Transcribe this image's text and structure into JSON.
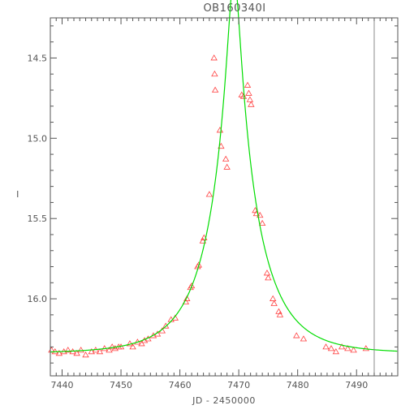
{
  "chart_data": {
    "type": "scatter",
    "title": "OB160340I",
    "xlabel": "JD - 2450000",
    "ylabel": "I",
    "xlim": [
      7438,
      7497
    ],
    "ylim": [
      16.48,
      14.25
    ],
    "y_reversed": true,
    "x_ticks": [
      7440,
      7450,
      7460,
      7470,
      7480,
      7490
    ],
    "y_ticks": [
      14.5,
      15.0,
      15.5,
      16.0
    ],
    "x_tick_labels": [
      "7440",
      "7450",
      "7460",
      "7470",
      "7480",
      "7490"
    ],
    "y_tick_labels": [
      "14.5",
      "15.0",
      "15.5",
      "16.0"
    ],
    "vertical_line_x": 7493,
    "colors": {
      "points": "#ff4040",
      "model": "#00dd00",
      "axes": "#555555",
      "vline": "#888888"
    },
    "series": [
      {
        "kind": "data_points",
        "marker": "triangle",
        "points": [
          [
            7438.2,
            16.32
          ],
          [
            7438.8,
            16.33
          ],
          [
            7439.5,
            16.34
          ],
          [
            7440.3,
            16.33
          ],
          [
            7441.0,
            16.32
          ],
          [
            7441.8,
            16.33
          ],
          [
            7442.5,
            16.34
          ],
          [
            7443.2,
            16.32
          ],
          [
            7444.0,
            16.35
          ],
          [
            7445.0,
            16.33
          ],
          [
            7445.7,
            16.32
          ],
          [
            7446.4,
            16.33
          ],
          [
            7447.2,
            16.31
          ],
          [
            7448.0,
            16.32
          ],
          [
            7448.5,
            16.3
          ],
          [
            7449.0,
            16.31
          ],
          [
            7449.6,
            16.3
          ],
          [
            7450.0,
            16.3
          ],
          [
            7451.5,
            16.28
          ],
          [
            7452.0,
            16.3
          ],
          [
            7452.8,
            16.27
          ],
          [
            7453.5,
            16.28
          ],
          [
            7454.0,
            16.26
          ],
          [
            7454.6,
            16.25
          ],
          [
            7455.5,
            16.23
          ],
          [
            7456.2,
            16.22
          ],
          [
            7457.0,
            16.2
          ],
          [
            7457.6,
            16.17
          ],
          [
            7458.5,
            16.13
          ],
          [
            7459.2,
            16.12
          ],
          [
            7461.0,
            16.02
          ],
          [
            7461.2,
            16.0
          ],
          [
            7461.8,
            15.93
          ],
          [
            7462.0,
            15.92
          ],
          [
            7463.0,
            15.8
          ],
          [
            7463.2,
            15.79
          ],
          [
            7463.9,
            15.64
          ],
          [
            7464.1,
            15.62
          ],
          [
            7465.0,
            15.35
          ],
          [
            7465.8,
            14.5
          ],
          [
            7465.9,
            14.6
          ],
          [
            7466.0,
            14.7
          ],
          [
            7466.8,
            14.95
          ],
          [
            7467.0,
            15.05
          ],
          [
            7467.8,
            15.13
          ],
          [
            7468.0,
            15.18
          ],
          [
            7470.5,
            14.73
          ],
          [
            7470.8,
            14.74
          ],
          [
            7471.5,
            14.67
          ],
          [
            7471.7,
            14.72
          ],
          [
            7471.9,
            14.76
          ],
          [
            7472.1,
            14.79
          ],
          [
            7472.8,
            15.45
          ],
          [
            7473.0,
            15.47
          ],
          [
            7473.6,
            15.48
          ],
          [
            7474.0,
            15.53
          ],
          [
            7474.8,
            15.84
          ],
          [
            7475.0,
            15.87
          ],
          [
            7475.8,
            16.0
          ],
          [
            7476.0,
            16.03
          ],
          [
            7476.8,
            16.08
          ],
          [
            7477.0,
            16.1
          ],
          [
            7479.8,
            16.23
          ],
          [
            7481.0,
            16.25
          ],
          [
            7484.8,
            16.3
          ],
          [
            7485.7,
            16.31
          ],
          [
            7486.5,
            16.33
          ],
          [
            7487.5,
            16.3
          ],
          [
            7488.5,
            16.31
          ],
          [
            7489.5,
            16.32
          ],
          [
            7491.6,
            16.31
          ]
        ]
      },
      {
        "kind": "model_curve",
        "model": "paczynski",
        "baseline_mag": 16.34,
        "t0": 7469.2,
        "tE": 8.5,
        "u0": 0.116
      }
    ]
  }
}
